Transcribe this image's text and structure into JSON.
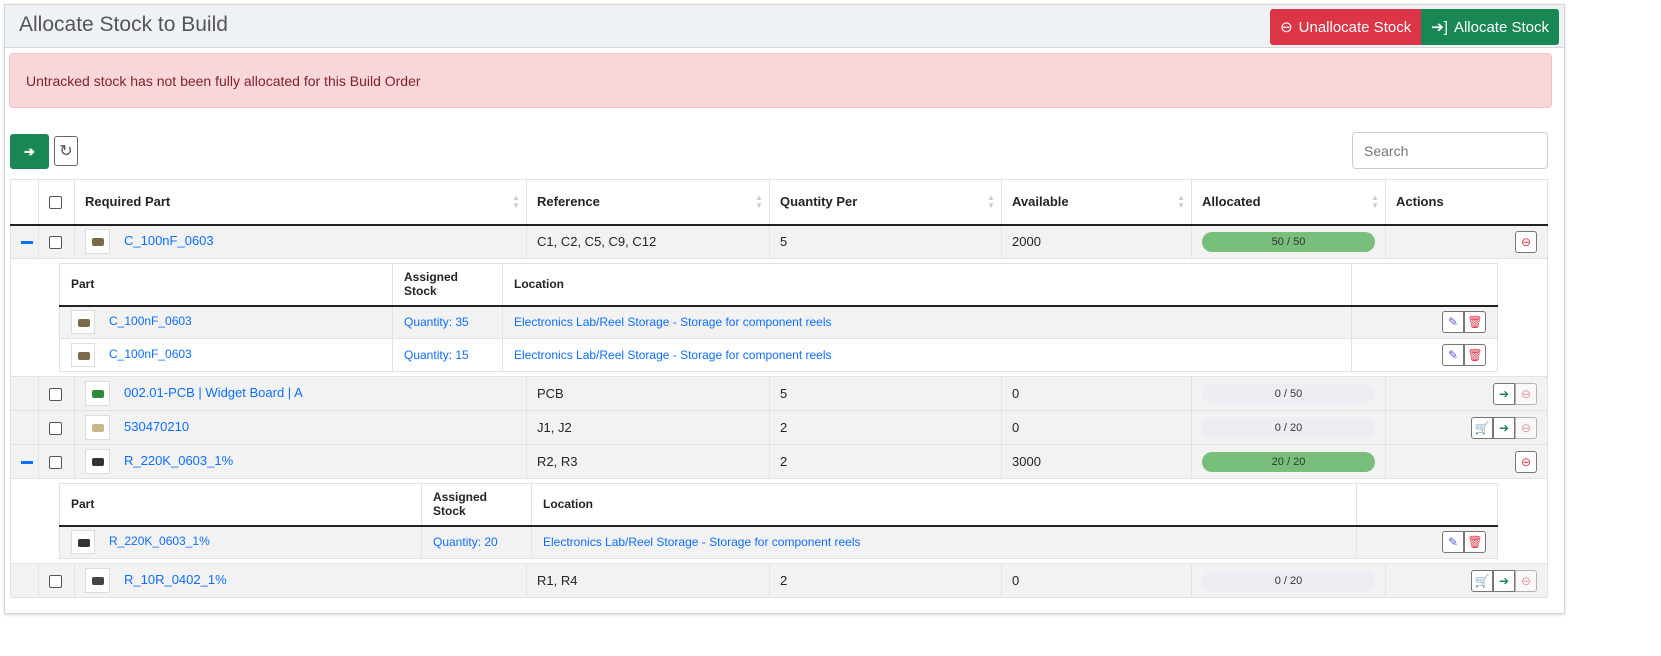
{
  "header": {
    "title": "Allocate Stock to Build",
    "unallocate_label": "Unallocate Stock",
    "allocate_label": "Allocate Stock"
  },
  "alert": "Untracked stock has not been fully allocated for this Build Order",
  "search": {
    "placeholder": "Search"
  },
  "columns": [
    "Required Part",
    "Reference",
    "Quantity Per",
    "Available",
    "Allocated",
    "Actions"
  ],
  "sub_columns": [
    "Part",
    "Assigned Stock",
    "Location"
  ],
  "rows": [
    {
      "part": "C_100nF_0603",
      "reference": "C1, C2, C5, C9, C12",
      "qty": "5",
      "available": "2000",
      "allocated": "50 / 50",
      "fraction": 1,
      "expanded": true,
      "thumb": "#7a6a4a",
      "actions": [
        "remove"
      ],
      "stock": [
        {
          "part": "C_100nF_0603",
          "qty": "Quantity: 35",
          "location": "Electronics Lab/Reel Storage - Storage for component reels"
        },
        {
          "part": "C_100nF_0603",
          "qty": "Quantity: 15",
          "location": "Electronics Lab/Reel Storage - Storage for component reels"
        }
      ]
    },
    {
      "part": "002.01-PCB | Widget Board | A",
      "reference": "PCB",
      "qty": "5",
      "available": "0",
      "allocated": "0 / 50",
      "fraction": 0,
      "expanded": false,
      "thumb": "#2e8b3a",
      "actions": [
        "allocate",
        "remove"
      ]
    },
    {
      "part": "530470210",
      "reference": "J1, J2",
      "qty": "2",
      "available": "0",
      "allocated": "0 / 20",
      "fraction": 0,
      "expanded": false,
      "thumb": "#c9b58a",
      "actions": [
        "buy",
        "allocate",
        "remove"
      ]
    },
    {
      "part": "R_220K_0603_1%",
      "reference": "R2, R3",
      "qty": "2",
      "available": "3000",
      "allocated": "20 / 20",
      "fraction": 1,
      "expanded": true,
      "thumb": "#333",
      "actions": [
        "remove"
      ],
      "stock": [
        {
          "part": "R_220K_0603_1%",
          "qty": "Quantity: 20",
          "location": "Electronics Lab/Reel Storage - Storage for component reels"
        }
      ]
    },
    {
      "part": "R_10R_0402_1%",
      "reference": "R1, R4",
      "qty": "2",
      "available": "0",
      "allocated": "0 / 20",
      "fraction": 0,
      "expanded": false,
      "thumb": "#444",
      "actions": [
        "buy",
        "allocate",
        "remove"
      ]
    }
  ],
  "colors": {
    "danger": "#dc3545",
    "success": "#198754",
    "progress_fill": "#79bf7c",
    "link": "#0d6efd"
  }
}
